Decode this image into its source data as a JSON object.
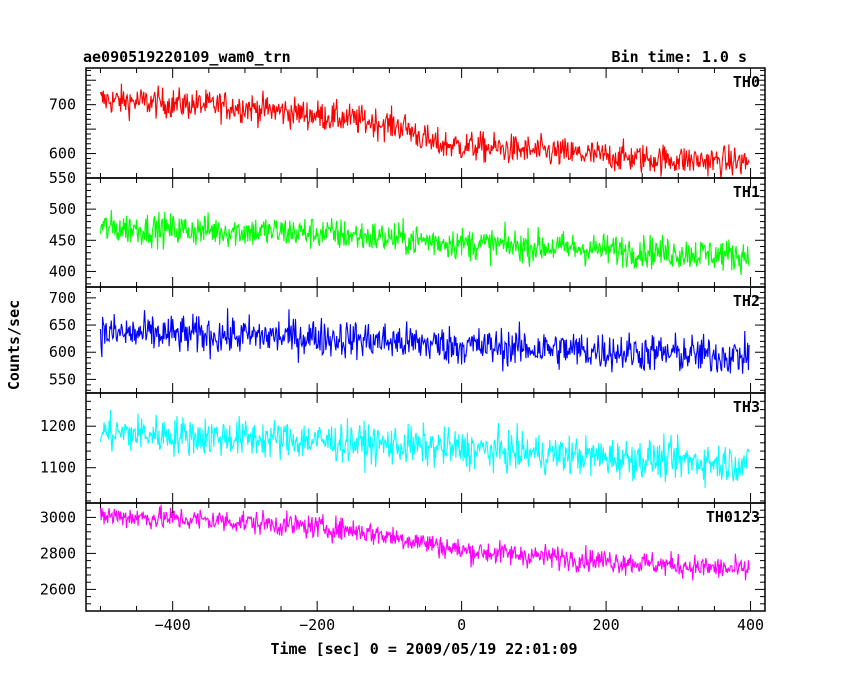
{
  "header": {
    "title": "ae090519220109_wam0_trn",
    "bin_time": "Bin time: 1.0 s"
  },
  "chart_data": {
    "type": "line",
    "xlabel": "Time [sec] 0 = 2009/05/19 22:01:09",
    "ylabel": "Counts/sec",
    "xlim": [
      -520,
      420
    ],
    "x_range_data": [
      -500,
      398
    ],
    "x_ticks": [
      -400,
      -200,
      0,
      200,
      400
    ],
    "panels": [
      {
        "name": "TH0",
        "color": "#ff0000",
        "ylim": [
          550,
          775
        ],
        "y_ticks": [
          550,
          600,
          700
        ],
        "trend": [
          [
            -500,
            710
          ],
          [
            -300,
            695
          ],
          [
            -150,
            670
          ],
          [
            -80,
            655
          ],
          [
            -40,
            620
          ],
          [
            100,
            605
          ],
          [
            250,
            590
          ],
          [
            398,
            582
          ]
        ],
        "noise": 26
      },
      {
        "name": "TH1",
        "color": "#00ff00",
        "ylim": [
          375,
          550
        ],
        "y_ticks": [
          400,
          450,
          500
        ],
        "trend": [
          [
            -500,
            470
          ],
          [
            -200,
            462
          ],
          [
            0,
            445
          ],
          [
            200,
            435
          ],
          [
            398,
            425
          ]
        ],
        "noise": 22
      },
      {
        "name": "TH2",
        "color": "#0000ff",
        "ylim": [
          525,
          720
        ],
        "y_ticks": [
          550,
          600,
          650,
          700
        ],
        "trend": [
          [
            -500,
            635
          ],
          [
            -200,
            628
          ],
          [
            0,
            612
          ],
          [
            200,
            602
          ],
          [
            398,
            592
          ]
        ],
        "noise": 30
      },
      {
        "name": "TH3",
        "color": "#00ffff",
        "ylim": [
          1015,
          1280
        ],
        "y_ticks": [
          1100,
          1200
        ],
        "trend": [
          [
            -500,
            1185
          ],
          [
            -200,
            1165
          ],
          [
            0,
            1145
          ],
          [
            200,
            1125
          ],
          [
            398,
            1110
          ]
        ],
        "noise": 40
      },
      {
        "name": "TH0123",
        "color": "#ff00ff",
        "ylim": [
          2480,
          3080
        ],
        "y_ticks": [
          2600,
          2800,
          3000
        ],
        "trend": [
          [
            -500,
            3010
          ],
          [
            -300,
            2975
          ],
          [
            -150,
            2930
          ],
          [
            -50,
            2860
          ],
          [
            0,
            2815
          ],
          [
            200,
            2760
          ],
          [
            398,
            2705
          ]
        ],
        "noise": 55
      }
    ]
  }
}
